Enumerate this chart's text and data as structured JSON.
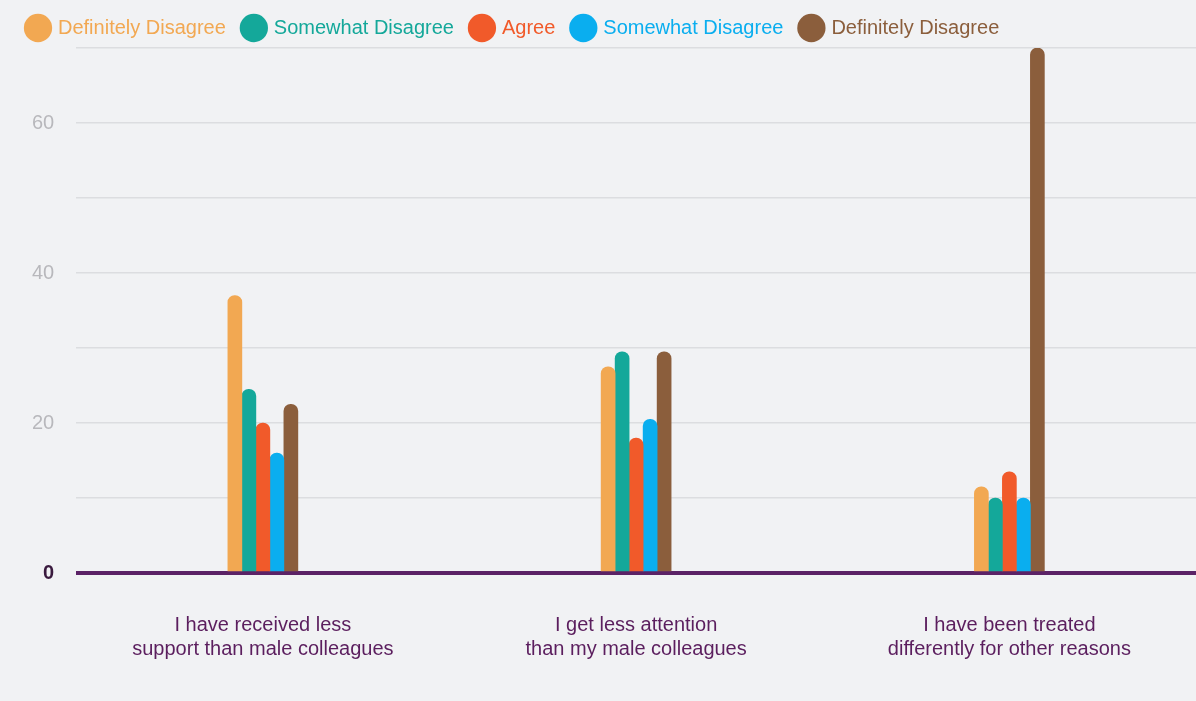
{
  "chart_data": {
    "type": "bar",
    "categories": [
      "I have received less\nsupport than male colleagues",
      "I get less attention\nthan my male colleagues",
      "I have been treated\ndifferently for other reasons"
    ],
    "series": [
      {
        "name": "Definitely Disagree",
        "color": "#f2a852",
        "values": [
          37,
          27.5,
          11.5
        ]
      },
      {
        "name": "Somewhat Disagree",
        "color": "#14a89a",
        "values": [
          24.5,
          29.5,
          10
        ]
      },
      {
        "name": "Agree",
        "color": "#f15a2a",
        "values": [
          20,
          18,
          13.5
        ]
      },
      {
        "name": "Somewhat Disagree",
        "color": "#0aaeef",
        "values": [
          16,
          20.5,
          10
        ]
      },
      {
        "name": "Definitely Disagree",
        "color": "#8b5e3c",
        "values": [
          22.5,
          29.5,
          70
        ]
      }
    ],
    "ylim": [
      0,
      70
    ],
    "yticks": [
      0,
      {
        "value": 10,
        "label": null
      },
      20,
      {
        "value": 30,
        "label": null
      },
      40,
      {
        "value": 50,
        "label": null
      },
      60,
      {
        "value": 70,
        "label": null
      }
    ],
    "grid": "y",
    "legend": "top left"
  }
}
